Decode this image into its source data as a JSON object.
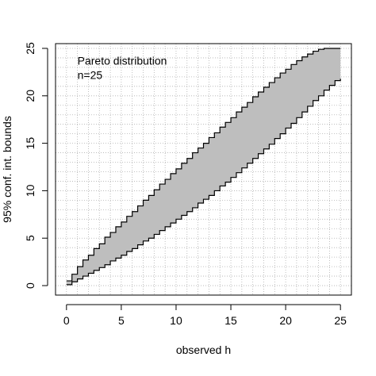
{
  "chart_data": {
    "type": "area",
    "title": "",
    "xlabel": "observed h",
    "ylabel": "95% conf. int. bounds",
    "xlim": [
      -1,
      26
    ],
    "ylim": [
      -1,
      25.5
    ],
    "xticks": [
      0,
      5,
      10,
      15,
      20,
      25
    ],
    "yticks": [
      0,
      5,
      10,
      15,
      20,
      25
    ],
    "grid": true,
    "grid_step": 1,
    "annotation": [
      "Pareto distribution",
      "n=25"
    ],
    "fill_color": "#bebebe",
    "series": [
      {
        "role": "upper",
        "x": [
          0,
          0.5,
          1,
          1.5,
          2,
          2.5,
          3,
          3.5,
          4,
          4.5,
          5,
          5.5,
          6,
          6.5,
          7,
          7.5,
          8,
          8.5,
          9,
          9.5,
          10,
          10.5,
          11,
          11.5,
          12,
          12.5,
          13,
          13.5,
          14,
          14.5,
          15,
          15.5,
          16,
          16.5,
          17,
          17.5,
          18,
          18.5,
          19,
          19.5,
          20,
          20.5,
          21,
          21.5,
          22,
          22.5,
          23,
          23.5,
          24,
          24.5,
          25
        ],
        "y": [
          0.5,
          1.2,
          2,
          2.7,
          3.2,
          3.9,
          4.4,
          5.1,
          5.6,
          6.2,
          6.7,
          7.3,
          7.8,
          8.4,
          9,
          9.5,
          10.1,
          10.7,
          11.2,
          11.8,
          12.3,
          12.9,
          13.4,
          14,
          14.5,
          15,
          15.6,
          16.1,
          16.7,
          17.2,
          17.7,
          18.3,
          18.8,
          19.3,
          19.9,
          20.4,
          20.9,
          21.4,
          21.9,
          22.4,
          22.8,
          23.3,
          23.7,
          24.1,
          24.4,
          24.7,
          24.9,
          25,
          25,
          25,
          25
        ]
      },
      {
        "role": "lower",
        "x": [
          0,
          0.5,
          1,
          1.5,
          2,
          2.5,
          3,
          3.5,
          4,
          4.5,
          5,
          5.5,
          6,
          6.5,
          7,
          7.5,
          8,
          8.5,
          9,
          9.5,
          10,
          10.5,
          11,
          11.5,
          12,
          12.5,
          13,
          13.5,
          14,
          14.5,
          15,
          15.5,
          16,
          16.5,
          17,
          17.5,
          18,
          18.5,
          19,
          19.5,
          20,
          20.5,
          21,
          21.5,
          22,
          22.5,
          23,
          23.5,
          24,
          24.5,
          25
        ],
        "y": [
          0.1,
          0.4,
          0.7,
          1.0,
          1.3,
          1.6,
          1.9,
          2.2,
          2.6,
          2.9,
          3.2,
          3.6,
          3.9,
          4.3,
          4.7,
          5.0,
          5.4,
          5.8,
          6.2,
          6.6,
          7.0,
          7.4,
          7.8,
          8.2,
          8.7,
          9.1,
          9.5,
          10.0,
          10.5,
          10.9,
          11.4,
          11.9,
          12.4,
          12.9,
          13.4,
          13.9,
          14.4,
          14.9,
          15.5,
          16.0,
          16.6,
          17.1,
          17.7,
          18.3,
          18.9,
          19.5,
          20.0,
          20.6,
          21.1,
          21.6,
          21.8
        ]
      }
    ]
  }
}
